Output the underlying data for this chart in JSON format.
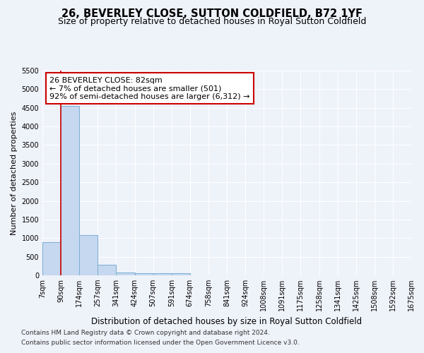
{
  "title1": "26, BEVERLEY CLOSE, SUTTON COLDFIELD, B72 1YF",
  "title2": "Size of property relative to detached houses in Royal Sutton Coldfield",
  "xlabel": "Distribution of detached houses by size in Royal Sutton Coldfield",
  "ylabel": "Number of detached properties",
  "footnote1": "Contains HM Land Registry data © Crown copyright and database right 2024.",
  "footnote2": "Contains public sector information licensed under the Open Government Licence v3.0.",
  "bin_labels": [
    "7sqm",
    "90sqm",
    "174sqm",
    "257sqm",
    "341sqm",
    "424sqm",
    "507sqm",
    "591sqm",
    "674sqm",
    "758sqm",
    "841sqm",
    "924sqm",
    "1008sqm",
    "1091sqm",
    "1175sqm",
    "1258sqm",
    "1341sqm",
    "1425sqm",
    "1508sqm",
    "1592sqm",
    "1675sqm"
  ],
  "bar_heights": [
    900,
    4550,
    1080,
    280,
    80,
    60,
    60,
    60,
    0,
    0,
    0,
    0,
    0,
    0,
    0,
    0,
    0,
    0,
    0,
    0
  ],
  "bar_color": "#c5d8ef",
  "bar_edge_color": "#7aaed4",
  "vline_color": "#cc0000",
  "vline_x": 1.0,
  "annotation_text": "26 BEVERLEY CLOSE: 82sqm\n← 7% of detached houses are smaller (501)\n92% of semi-detached houses are larger (6,312) →",
  "annotation_box_color": "#ffffff",
  "annotation_box_edge": "#cc0000",
  "ylim": [
    0,
    5500
  ],
  "yticks": [
    0,
    500,
    1000,
    1500,
    2000,
    2500,
    3000,
    3500,
    4000,
    4500,
    5000,
    5500
  ],
  "bg_color": "#eef2f9",
  "grid_color": "#ffffff",
  "title1_fontsize": 10.5,
  "title2_fontsize": 9,
  "xlabel_fontsize": 8.5,
  "ylabel_fontsize": 8,
  "tick_fontsize": 7,
  "annotation_fontsize": 8,
  "footnote_fontsize": 6.5
}
